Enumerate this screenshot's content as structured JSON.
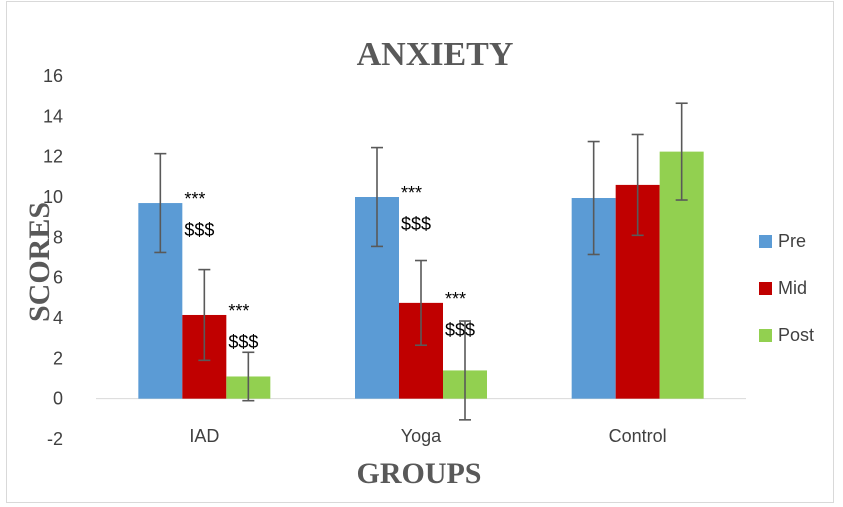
{
  "chart_data": {
    "type": "bar",
    "title": "ANXIETY",
    "xlabel": "GROUPS",
    "ylabel": "SCORES",
    "categories": [
      "IAD",
      "Yoga",
      "Control"
    ],
    "ylim": [
      -2,
      16
    ],
    "yticks": [
      "-2",
      "0",
      "2",
      "4",
      "6",
      "8",
      "10",
      "12",
      "14",
      "16"
    ],
    "grid": false,
    "legend_position": "right",
    "series": [
      {
        "name": "Pre",
        "color": "#5b9bd5",
        "values": [
          9.7,
          10.0,
          9.95
        ],
        "errors": [
          2.45,
          2.45,
          2.8
        ]
      },
      {
        "name": "Mid",
        "color": "#c00000",
        "values": [
          4.15,
          4.75,
          10.6
        ],
        "errors": [
          2.25,
          2.1,
          2.5
        ]
      },
      {
        "name": "Post",
        "color": "#92d050",
        "values": [
          1.1,
          1.4,
          12.25
        ],
        "errors": [
          1.2,
          2.45,
          2.4
        ]
      }
    ],
    "annotations": [
      {
        "category": "IAD",
        "series": "Pre",
        "lines": [
          "***",
          "$$$"
        ]
      },
      {
        "category": "IAD",
        "series": "Mid",
        "lines": [
          "***",
          "$$$"
        ]
      },
      {
        "category": "Yoga",
        "series": "Pre",
        "lines": [
          "***",
          "$$$"
        ]
      },
      {
        "category": "Yoga",
        "series": "Mid",
        "lines": [
          "***",
          "$$$"
        ]
      }
    ]
  }
}
